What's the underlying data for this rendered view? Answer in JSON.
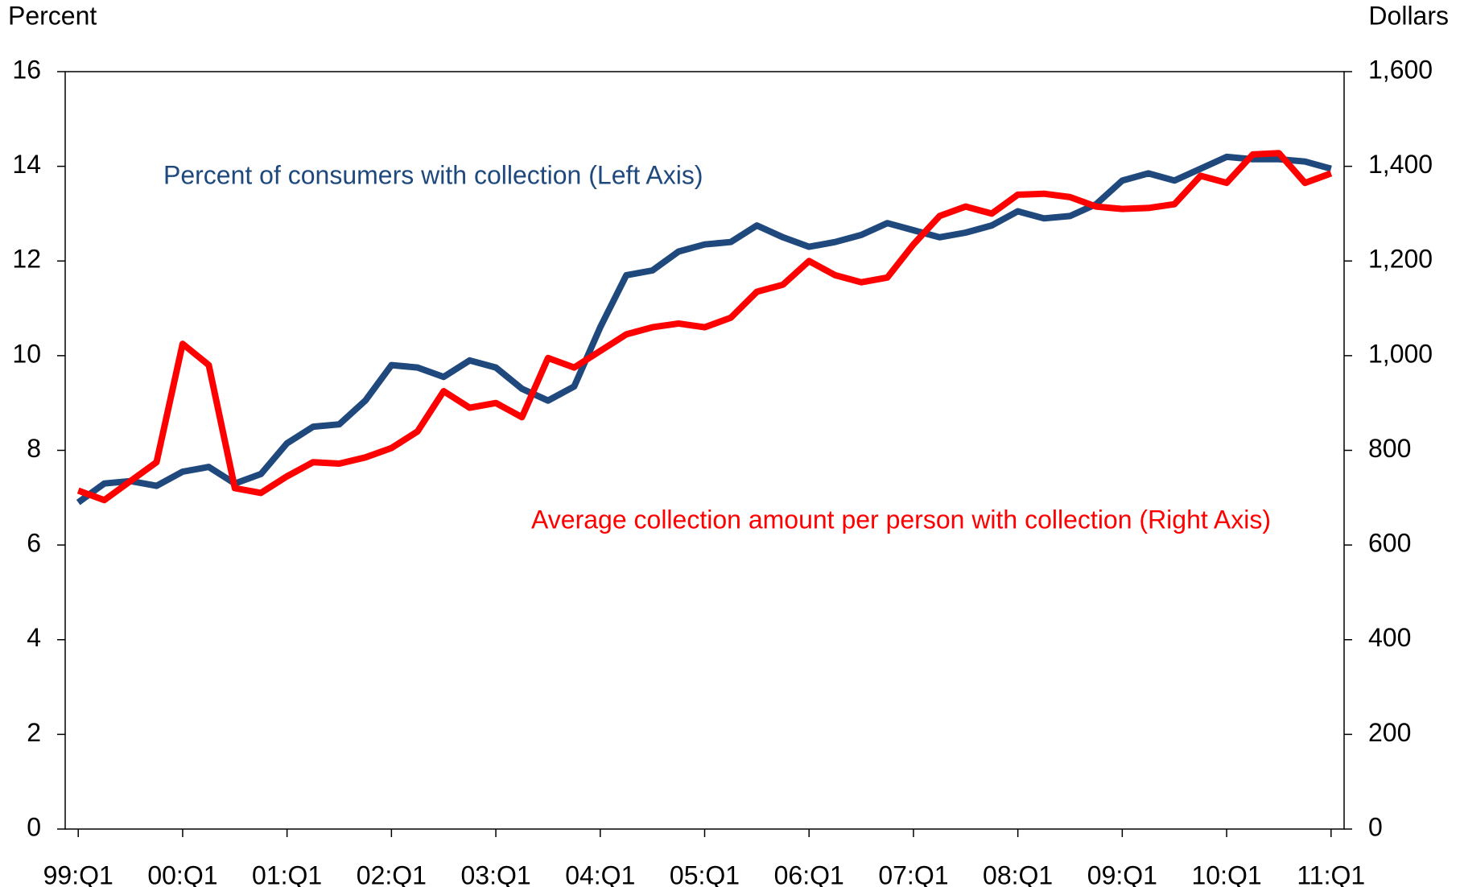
{
  "chart_data": {
    "type": "line",
    "y_label": "Percent",
    "y2_label": "Dollars",
    "categories": [
      "99:Q1",
      null,
      null,
      null,
      "00:Q1",
      null,
      null,
      null,
      "01:Q1",
      null,
      null,
      null,
      "02:Q1",
      null,
      null,
      null,
      "03:Q1",
      null,
      null,
      null,
      "04:Q1",
      null,
      null,
      null,
      "05:Q1",
      null,
      null,
      null,
      "06:Q1",
      null,
      null,
      null,
      "07:Q1",
      null,
      null,
      null,
      "08:Q1",
      null,
      null,
      null,
      "09:Q1",
      null,
      null,
      null,
      "10:Q1",
      null,
      null,
      null,
      "11:Q1"
    ],
    "series": [
      {
        "name": "Percent of consumers with collection (Left Axis)",
        "color": "#1f497d",
        "axis": "y",
        "values": [
          6.9,
          7.3,
          7.35,
          7.25,
          7.55,
          7.65,
          7.3,
          7.5,
          8.15,
          8.5,
          8.55,
          9.05,
          9.8,
          9.75,
          9.55,
          9.9,
          9.75,
          9.3,
          9.05,
          9.35,
          10.6,
          11.7,
          11.8,
          12.2,
          12.35,
          12.4,
          12.75,
          12.5,
          12.3,
          12.4,
          12.55,
          12.8,
          12.65,
          12.5,
          12.6,
          12.75,
          13.05,
          12.9,
          12.95,
          13.2,
          13.7,
          13.85,
          13.7,
          13.95,
          14.2,
          14.15,
          14.15,
          14.1,
          13.95
        ]
      },
      {
        "name": "Average collection amount per person with collection (Right Axis)",
        "color": "#ff0000",
        "axis": "y2",
        "values": [
          715,
          695,
          735,
          775,
          1025,
          980,
          720,
          710,
          745,
          775,
          772,
          785,
          805,
          840,
          925,
          890,
          900,
          870,
          995,
          975,
          1010,
          1045,
          1060,
          1068,
          1060,
          1080,
          1135,
          1150,
          1200,
          1170,
          1155,
          1165,
          1235,
          1295,
          1315,
          1300,
          1340,
          1342,
          1335,
          1315,
          1310,
          1312,
          1320,
          1380,
          1365,
          1425,
          1428,
          1365,
          1385
        ]
      }
    ],
    "ylim": [
      0,
      16
    ],
    "yticks": [
      0,
      2,
      4,
      6,
      8,
      10,
      12,
      14,
      16
    ],
    "y2lim": [
      0,
      1600
    ],
    "y2ticks": [
      0,
      200,
      400,
      600,
      800,
      {
        "value": 1000,
        "label": "1,000"
      },
      {
        "value": 1200,
        "label": "1,200"
      },
      {
        "value": 1400,
        "label": "1,400"
      },
      {
        "value": 1600,
        "label": "1,600"
      }
    ],
    "grid": false
  }
}
